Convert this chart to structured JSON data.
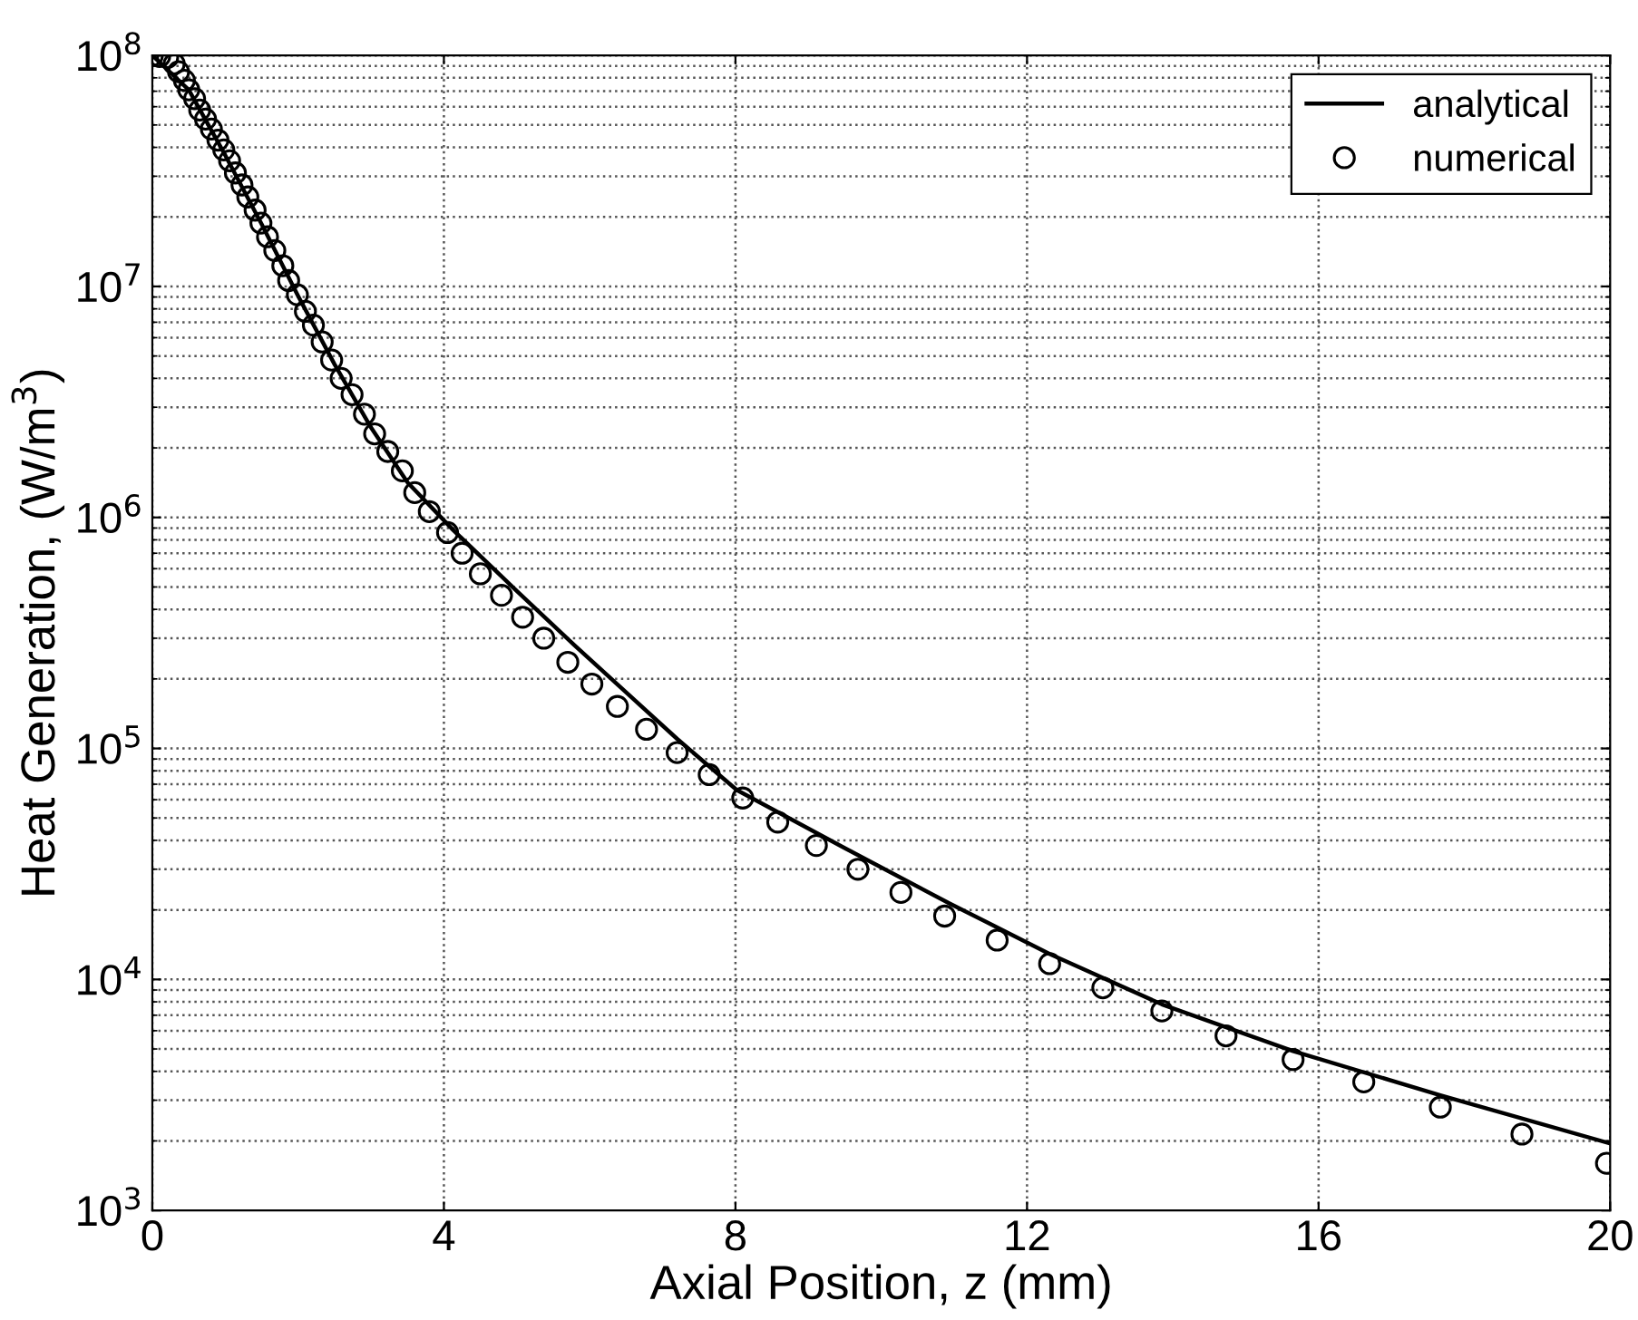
{
  "chart_data": {
    "type": "line",
    "xlabel": "Axial Position, z (mm)",
    "ylabel": "Heat Generation, (W/m$^{3}$)",
    "log": "y",
    "grid": true,
    "legend": "top right",
    "xlim": [
      0,
      20
    ],
    "xticks": [
      0,
      4,
      8,
      12,
      16,
      20
    ],
    "ylim": [
      1000,
      100000000
    ],
    "yticks": [
      {
        "value": 1000,
        "label": "10$^{3}$"
      },
      {
        "value": 10000,
        "label": "10$^{4}$"
      },
      {
        "value": 100000,
        "label": "10$^{5}$"
      },
      {
        "value": 1000000,
        "label": "10$^{6}$"
      },
      {
        "value": 10000000,
        "label": "10$^{7}$"
      },
      {
        "value": 100000000,
        "label": "10$^{8}$"
      }
    ],
    "series": [
      {
        "name": "analytical",
        "color": "#000000",
        "marker": "none",
        "line_style": "solid",
        "x": [
          0,
          0.5,
          1,
          1.5,
          2,
          2.5,
          3,
          3.5,
          4.13,
          5,
          5.79,
          7.2,
          8.02,
          9.5,
          10.93,
          12.31,
          13.85,
          15.65,
          17.67,
          20
        ],
        "values": [
          100000000,
          71000000,
          37000000,
          18600000,
          9100000,
          4600000,
          2450000,
          1420000,
          880000,
          480000,
          280000,
          110000,
          66000,
          37000,
          21400,
          12900,
          7800,
          4900,
          3150,
          1950
        ]
      },
      {
        "name": "numerical",
        "type": "scatter",
        "color": "#000000",
        "marker": "circle",
        "x": [
          0,
          0.1,
          0.21,
          0.3,
          0.36,
          0.44,
          0.5,
          0.58,
          0.65,
          0.73,
          0.81,
          0.9,
          0.98,
          1.06,
          1.14,
          1.23,
          1.31,
          1.41,
          1.49,
          1.58,
          1.68,
          1.79,
          1.87,
          1.99,
          2.1,
          2.21,
          2.33,
          2.46,
          2.59,
          2.74,
          2.91,
          3.05,
          3.23,
          3.43,
          3.6,
          3.8,
          4.05,
          4.25,
          4.5,
          4.79,
          5.08,
          5.37,
          5.7,
          6.03,
          6.38,
          6.78,
          7.2,
          7.64,
          8.1,
          8.58,
          9.11,
          9.68,
          10.27,
          10.87,
          11.59,
          12.31,
          13.04,
          13.85,
          14.73,
          15.65,
          16.62,
          17.67,
          18.79,
          19.95
        ],
        "values": [
          100000000,
          99000000,
          98000000,
          92000000,
          85000000,
          78000000,
          71000000,
          65000000,
          58000000,
          53000000,
          48000000,
          43000000,
          39000000,
          35000000,
          31000000,
          27500000,
          24400000,
          21400000,
          18800000,
          16400000,
          14300000,
          12300000,
          10600000,
          9200000,
          7800000,
          6800000,
          5750000,
          4800000,
          4000000,
          3400000,
          2800000,
          2300000,
          1930000,
          1590000,
          1280000,
          1060000,
          860000,
          700000,
          570000,
          460000,
          370000,
          300000,
          236000,
          190000,
          152000,
          121000,
          96000,
          77000,
          61000,
          48000,
          38000,
          30000,
          23800,
          18800,
          14800,
          11700,
          9200,
          7300,
          5700,
          4500,
          3600,
          2800,
          2140,
          1600
        ]
      }
    ]
  }
}
